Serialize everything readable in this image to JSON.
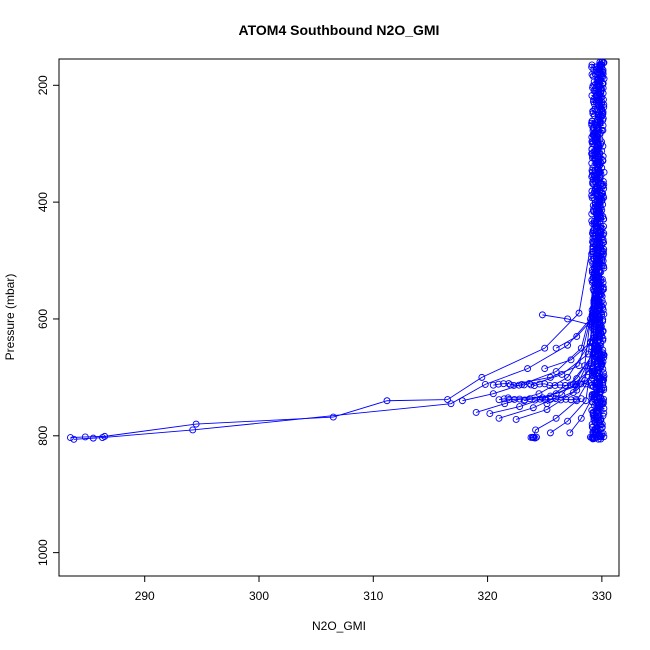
{
  "chart_data": {
    "type": "line",
    "title": "ATOM4 Southbound N2O_GMI",
    "xlabel": "N2O_GMI",
    "ylabel": "Pressure (mbar)",
    "xlim": [
      282.5,
      331.5
    ],
    "ylim": [
      1040,
      155
    ],
    "y_reversed": true,
    "x_ticks": [
      290,
      300,
      310,
      320,
      330
    ],
    "y_ticks": [
      200,
      400,
      600,
      800,
      1000
    ],
    "grid": false,
    "series_color": "#0000ff",
    "series": [
      {
        "x": [
          283.5,
          284.8,
          286.5,
          294.5,
          306.5,
          311.2,
          316.5,
          319.5,
          325.0,
          328.0,
          329.5,
          330.0
        ],
        "y": [
          803,
          802,
          801,
          780,
          768,
          740,
          738,
          700,
          650,
          590,
          420,
          160
        ]
      },
      {
        "x": [
          283.8,
          285.5,
          286.3,
          294.2,
          316.8,
          319.8,
          323.5,
          327.0,
          329.0,
          329.8,
          330.0
        ],
        "y": [
          806,
          804,
          803,
          790,
          745,
          712,
          685,
          645,
          600,
          350,
          165
        ]
      },
      {
        "x": [
          317.8,
          320.5,
          323.0,
          326.0,
          328.2,
          329.4,
          329.9
        ],
        "y": [
          740,
          728,
          712,
          690,
          650,
          560,
          300
        ]
      },
      {
        "x": [
          319.0,
          321.5,
          324.5,
          327.0,
          329.0,
          329.7
        ],
        "y": [
          760,
          745,
          728,
          700,
          640,
          420
        ]
      },
      {
        "x": [
          320.2,
          322.8,
          325.5,
          327.8,
          329.2,
          329.8
        ],
        "y": [
          762,
          750,
          732,
          702,
          660,
          380
        ]
      },
      {
        "x": [
          321.0,
          324.0,
          326.5,
          328.5,
          329.6
        ],
        "y": [
          770,
          752,
          730,
          680,
          500
        ]
      },
      {
        "x": [
          322.5,
          325.2,
          327.5,
          329.1,
          329.8
        ],
        "y": [
          772,
          755,
          726,
          680,
          400
        ]
      },
      {
        "x": [
          324.0,
          324.2,
          326.0,
          327.8,
          329.3,
          329.9
        ],
        "y": [
          803,
          790,
          770,
          740,
          690,
          450
        ]
      },
      {
        "x": [
          325.5,
          327.0,
          328.6,
          329.6
        ],
        "y": [
          795,
          775,
          740,
          600
        ]
      },
      {
        "x": [
          327.2,
          328.2,
          329.3,
          329.8
        ],
        "y": [
          795,
          770,
          730,
          520
        ]
      },
      {
        "x": [
          329.2,
          329.5,
          329.8,
          330.0
        ],
        "y": [
          803,
          760,
          700,
          500
        ]
      },
      {
        "x": [
          325.2,
          327.8,
          329.4,
          329.9
        ],
        "y": [
          745,
          722,
          690,
          480
        ]
      },
      {
        "x": [
          322.0,
          325.5,
          328.0,
          329.5
        ],
        "y": [
          713,
          700,
          680,
          560
        ]
      },
      {
        "x": [
          323.8,
          326.5,
          328.8,
          329.7
        ],
        "y": [
          713,
          695,
          660,
          540
        ]
      },
      {
        "x": [
          325.0,
          327.3,
          329.0,
          329.8
        ],
        "y": [
          685,
          670,
          640,
          500
        ]
      },
      {
        "x": [
          326.0,
          327.8,
          329.2,
          329.8
        ],
        "y": [
          650,
          630,
          600,
          470
        ]
      },
      {
        "x": [
          324.8,
          327.0,
          329.0,
          329.8
        ],
        "y": [
          593,
          600,
          610,
          550
        ]
      },
      {
        "x": [
          321.8,
          324.8,
          327.8,
          329.6
        ],
        "y": [
          735,
          735,
          715,
          640
        ]
      },
      {
        "x": [
          323.2,
          326.0,
          328.5,
          329.7
        ],
        "y": [
          740,
          728,
          705,
          600
        ]
      },
      {
        "x": [
          327.5,
          328.8,
          329.6,
          329.9
        ],
        "y": [
          712,
          690,
          650,
          520
        ]
      }
    ],
    "core_profile": {
      "x_center": 329.65,
      "x_spread": 0.55,
      "p_min": 160,
      "p_max": 805,
      "p_step": 4
    },
    "band_710": {
      "x_from": 320.5,
      "x_to": 329.8,
      "y": 712
    },
    "band_740": {
      "x_from": 321.0,
      "x_to": 328.5,
      "y": 738
    },
    "cluster_803": [
      {
        "x_from": 323.8,
        "x_to": 324.3
      },
      {
        "x_from": 329.0,
        "x_to": 329.6
      }
    ]
  }
}
